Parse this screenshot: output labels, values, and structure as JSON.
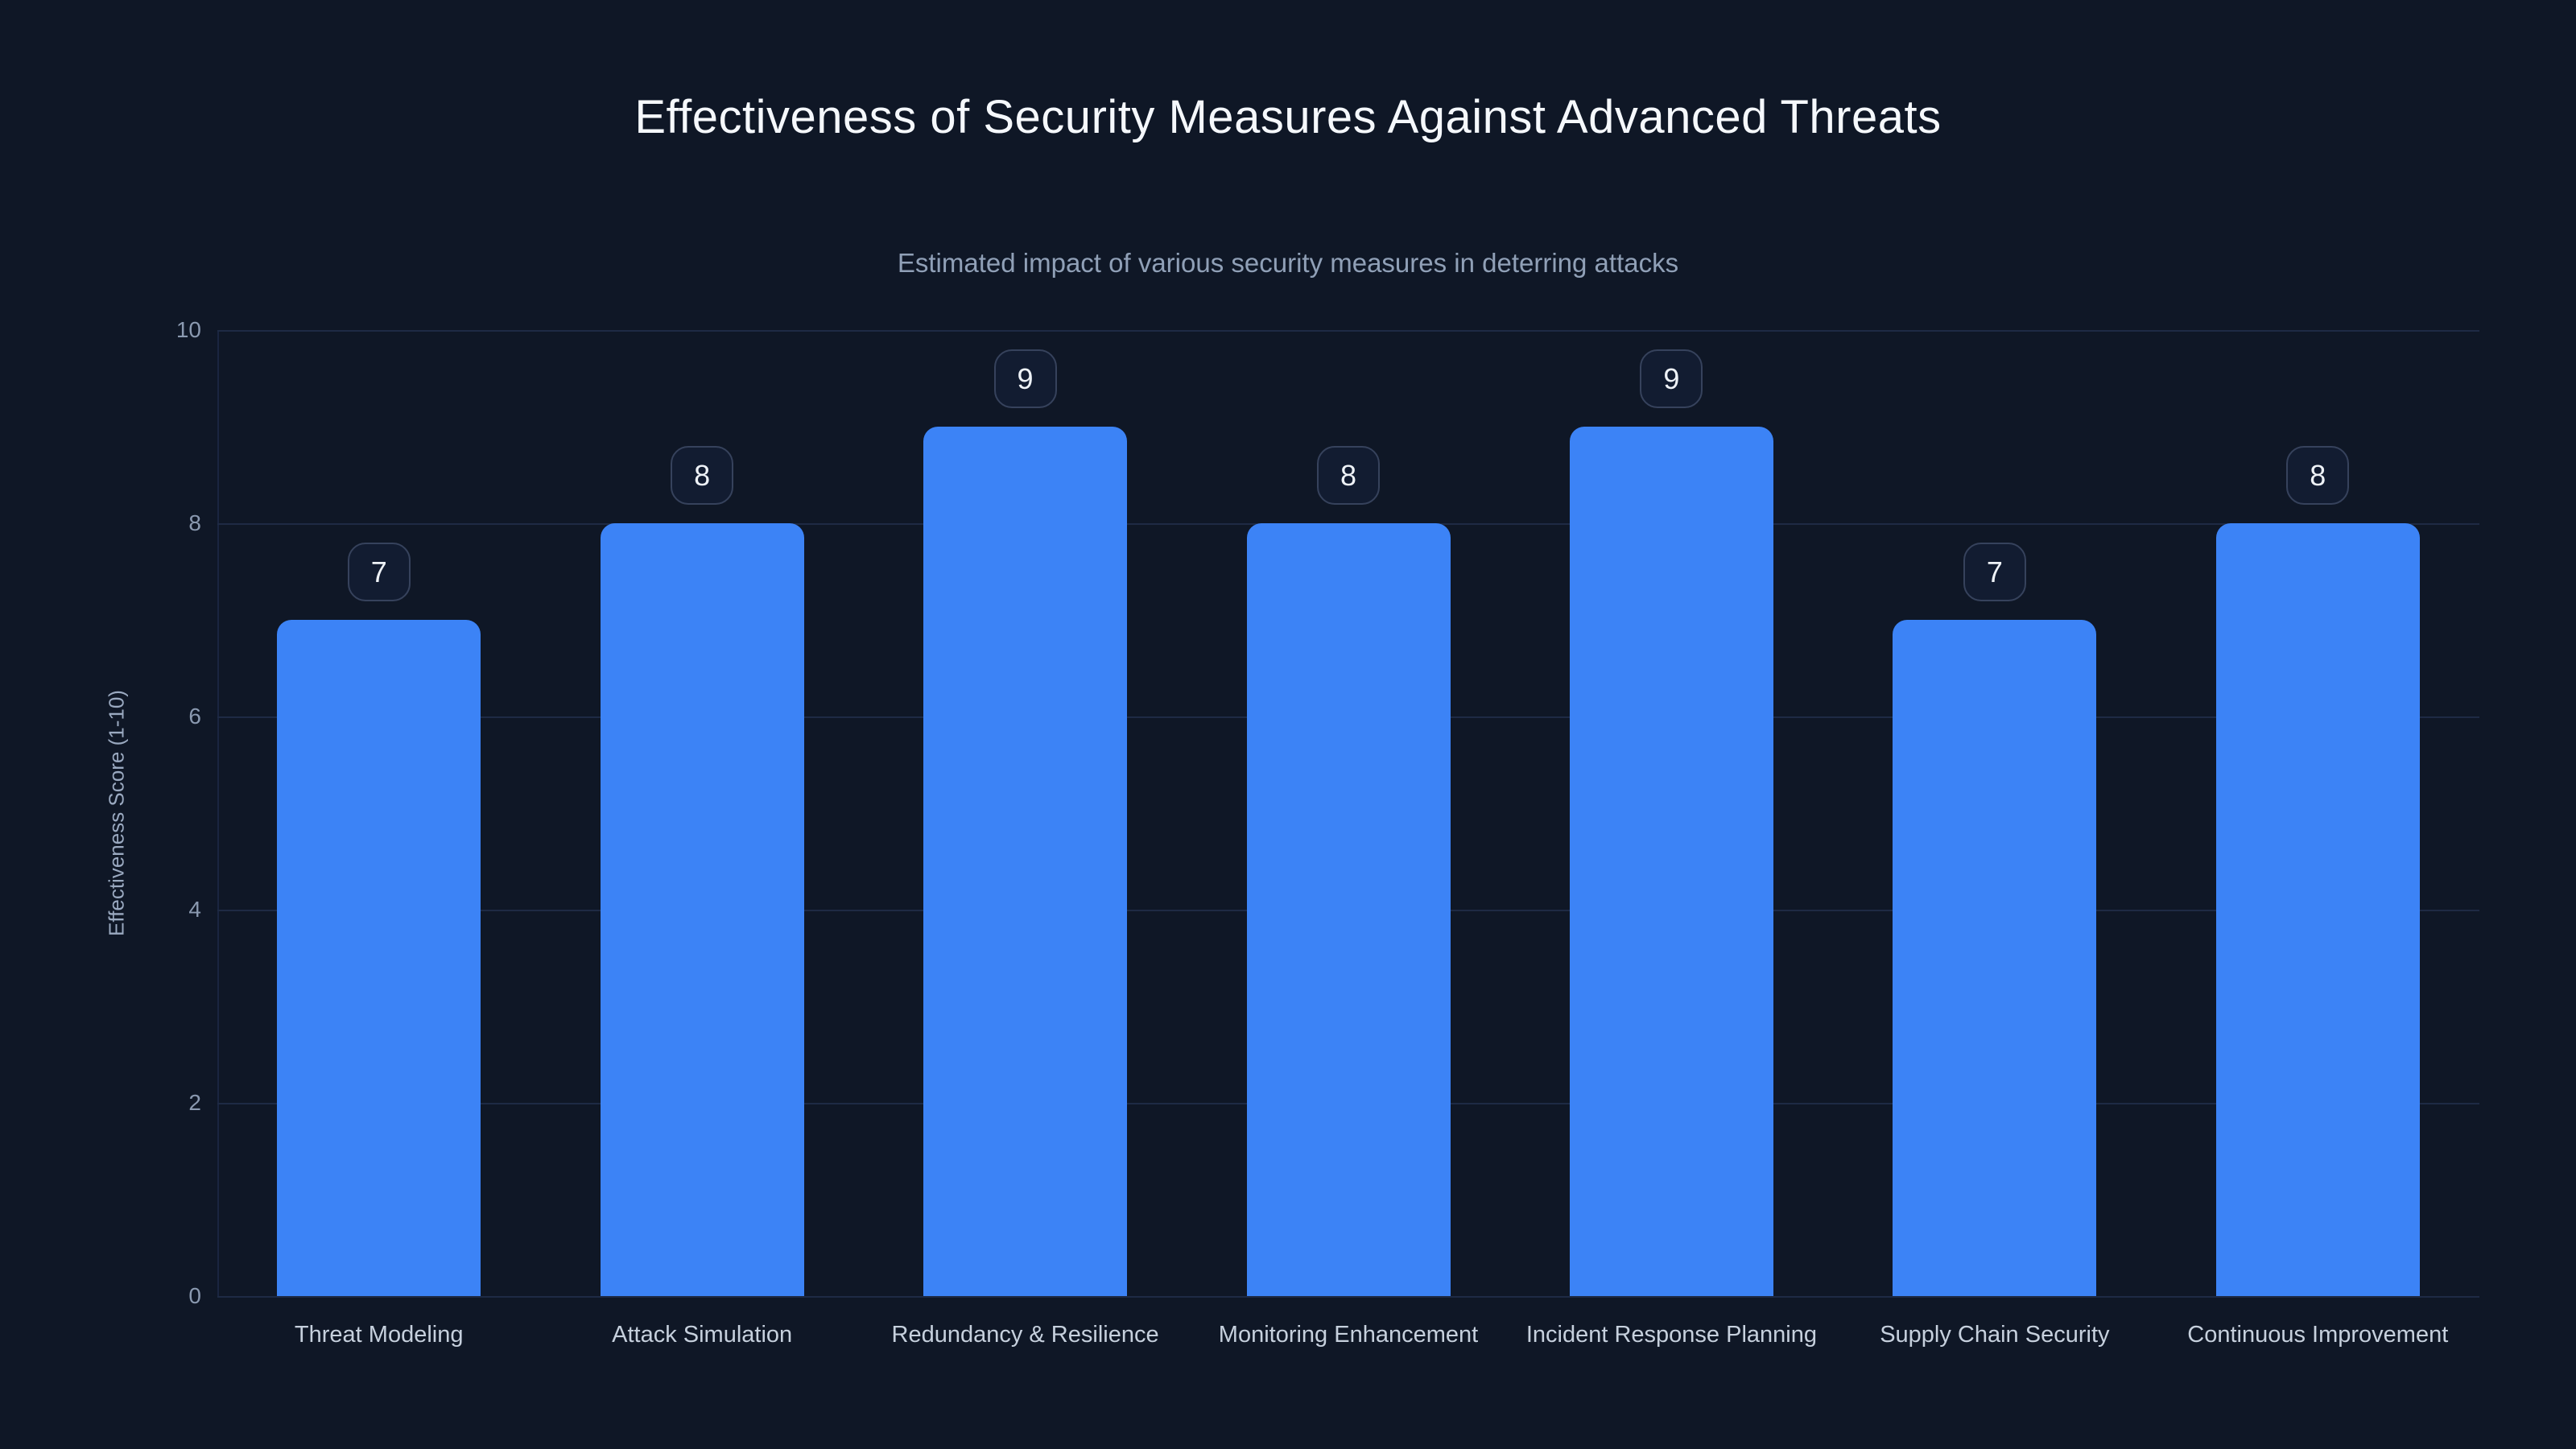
{
  "chart_data": {
    "type": "bar",
    "title": "Effectiveness of Security Measures Against Advanced Threats",
    "subtitle": "Estimated impact of various security measures in deterring attacks",
    "categories": [
      "Threat Modeling",
      "Attack Simulation",
      "Redundancy & Resilience",
      "Monitoring Enhancement",
      "Incident Response Planning",
      "Supply Chain Security",
      "Continuous Improvement"
    ],
    "values": [
      7,
      8,
      9,
      8,
      9,
      7,
      8
    ],
    "value_labels": [
      "7",
      "8",
      "9",
      "8",
      "9",
      "7",
      "8"
    ],
    "xlabel": "",
    "ylabel": "Effectiveness Score (1-10)",
    "ylim": [
      0,
      10
    ],
    "y_ticks": [
      0,
      2,
      4,
      6,
      8,
      10
    ],
    "grid": true,
    "legend": "none"
  },
  "colors": {
    "background": "#0f1726",
    "bar": "#3c83f6",
    "title": "#f5f8fc",
    "subtitle": "#90a0b7",
    "gridline": "#1e2a44",
    "y_tick_label": "#8a99b0",
    "x_tick_label": "#c6d0dd",
    "y_axis_title": "#9aa9c0",
    "badge_border": "#36425c",
    "badge_background": "#121c31",
    "badge_text": "#eef2f7"
  }
}
